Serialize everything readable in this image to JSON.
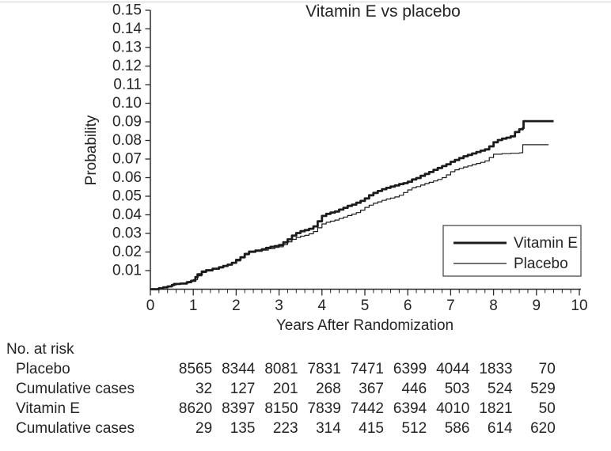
{
  "figure_colors": {
    "background": "#ffffff",
    "line_color": "#1b1b1b",
    "axis_color": "#2b2b2b",
    "text_color": "#262324",
    "top_rule_color": "#d2d2d2"
  },
  "chart": {
    "title": "Vitamin E vs placebo",
    "xlabel": "Years After Randomization",
    "ylabel": "Probability"
  },
  "legend": {
    "items": [
      {
        "label": "Vitamin E",
        "weight": "thick"
      },
      {
        "label": "Placebo",
        "weight": "thin"
      }
    ]
  },
  "chart_data": {
    "type": "line",
    "subtype": "kaplan-meier-step",
    "title": "Vitamin E vs placebo",
    "xlabel": "Years After Randomization",
    "ylabel": "Probability",
    "xlim": [
      0,
      10
    ],
    "ylim": [
      0,
      0.15
    ],
    "x_major_ticks": [
      "0",
      "1",
      "2",
      "3",
      "4",
      "5",
      "6",
      "7",
      "8",
      "9",
      "10"
    ],
    "x_minor_step": 0.2,
    "y_tick_labels": [
      "0.01",
      "0.02",
      "0.03",
      "0.04",
      "0.05",
      "0.06",
      "0.07",
      "0.08",
      "0.09",
      "0.10",
      "0.11",
      "0.12",
      "0.13",
      "0.14",
      "0.15"
    ],
    "grid": false,
    "legend_position": "lower right",
    "series": [
      {
        "name": "Vitamin E",
        "style": "thick",
        "points": [
          [
            0,
            0
          ],
          [
            0.2,
            0.0005
          ],
          [
            0.3,
            0.001
          ],
          [
            0.4,
            0.0015
          ],
          [
            0.5,
            0.0022
          ],
          [
            0.55,
            0.0028
          ],
          [
            0.7,
            0.003
          ],
          [
            0.85,
            0.0038
          ],
          [
            0.95,
            0.0045
          ],
          [
            1.05,
            0.0065
          ],
          [
            1.1,
            0.008
          ],
          [
            1.2,
            0.0095
          ],
          [
            1.3,
            0.0102
          ],
          [
            1.45,
            0.011
          ],
          [
            1.6,
            0.0118
          ],
          [
            1.7,
            0.0125
          ],
          [
            1.8,
            0.0132
          ],
          [
            1.9,
            0.0142
          ],
          [
            2.0,
            0.0158
          ],
          [
            2.1,
            0.0172
          ],
          [
            2.2,
            0.019
          ],
          [
            2.3,
            0.0202
          ],
          [
            2.45,
            0.0208
          ],
          [
            2.6,
            0.0215
          ],
          [
            2.7,
            0.0222
          ],
          [
            2.8,
            0.0228
          ],
          [
            2.9,
            0.0232
          ],
          [
            3.0,
            0.0238
          ],
          [
            3.1,
            0.0252
          ],
          [
            3.2,
            0.0268
          ],
          [
            3.3,
            0.0288
          ],
          [
            3.4,
            0.0302
          ],
          [
            3.5,
            0.0312
          ],
          [
            3.6,
            0.0318
          ],
          [
            3.7,
            0.0325
          ],
          [
            3.8,
            0.0338
          ],
          [
            3.9,
            0.0365
          ],
          [
            4.0,
            0.0394
          ],
          [
            4.1,
            0.0405
          ],
          [
            4.2,
            0.0412
          ],
          [
            4.3,
            0.0418
          ],
          [
            4.4,
            0.0428
          ],
          [
            4.5,
            0.0438
          ],
          [
            4.6,
            0.0448
          ],
          [
            4.7,
            0.0455
          ],
          [
            4.8,
            0.0465
          ],
          [
            4.9,
            0.0475
          ],
          [
            5.0,
            0.0488
          ],
          [
            5.1,
            0.0505
          ],
          [
            5.2,
            0.0518
          ],
          [
            5.3,
            0.0528
          ],
          [
            5.4,
            0.0538
          ],
          [
            5.5,
            0.0545
          ],
          [
            5.6,
            0.0552
          ],
          [
            5.7,
            0.0558
          ],
          [
            5.8,
            0.0565
          ],
          [
            5.9,
            0.057
          ],
          [
            6.0,
            0.0578
          ],
          [
            6.1,
            0.059
          ],
          [
            6.2,
            0.0598
          ],
          [
            6.3,
            0.061
          ],
          [
            6.4,
            0.062
          ],
          [
            6.5,
            0.063
          ],
          [
            6.6,
            0.0642
          ],
          [
            6.7,
            0.0652
          ],
          [
            6.8,
            0.0662
          ],
          [
            6.9,
            0.0672
          ],
          [
            7.0,
            0.0685
          ],
          [
            7.1,
            0.0695
          ],
          [
            7.2,
            0.0705
          ],
          [
            7.3,
            0.0715
          ],
          [
            7.4,
            0.0722
          ],
          [
            7.5,
            0.073
          ],
          [
            7.6,
            0.0738
          ],
          [
            7.7,
            0.0745
          ],
          [
            7.8,
            0.0752
          ],
          [
            7.9,
            0.0768
          ],
          [
            8.0,
            0.079
          ],
          [
            8.1,
            0.0802
          ],
          [
            8.2,
            0.081
          ],
          [
            8.3,
            0.0815
          ],
          [
            8.4,
            0.0822
          ],
          [
            8.5,
            0.0845
          ],
          [
            8.6,
            0.086
          ],
          [
            8.68,
            0.0866
          ],
          [
            8.7,
            0.0904
          ],
          [
            9.4,
            0.0904
          ]
        ]
      },
      {
        "name": "Placebo",
        "style": "thin",
        "points": [
          [
            0,
            0
          ],
          [
            0.2,
            0.0005
          ],
          [
            0.3,
            0.001
          ],
          [
            0.4,
            0.0015
          ],
          [
            0.5,
            0.0022
          ],
          [
            0.6,
            0.0028
          ],
          [
            0.75,
            0.0033
          ],
          [
            0.9,
            0.0042
          ],
          [
            1.0,
            0.0052
          ],
          [
            1.1,
            0.0072
          ],
          [
            1.2,
            0.009
          ],
          [
            1.3,
            0.0098
          ],
          [
            1.45,
            0.0108
          ],
          [
            1.6,
            0.0115
          ],
          [
            1.7,
            0.0122
          ],
          [
            1.8,
            0.013
          ],
          [
            1.9,
            0.014
          ],
          [
            2.0,
            0.0152
          ],
          [
            2.1,
            0.0168
          ],
          [
            2.2,
            0.0185
          ],
          [
            2.3,
            0.0198
          ],
          [
            2.45,
            0.0204
          ],
          [
            2.6,
            0.021
          ],
          [
            2.75,
            0.0218
          ],
          [
            2.9,
            0.0225
          ],
          [
            3.0,
            0.0228
          ],
          [
            3.1,
            0.024
          ],
          [
            3.2,
            0.0255
          ],
          [
            3.3,
            0.0268
          ],
          [
            3.4,
            0.0278
          ],
          [
            3.5,
            0.0285
          ],
          [
            3.6,
            0.029
          ],
          [
            3.7,
            0.0298
          ],
          [
            3.8,
            0.031
          ],
          [
            3.9,
            0.033
          ],
          [
            4.0,
            0.0351
          ],
          [
            4.1,
            0.036
          ],
          [
            4.2,
            0.0366
          ],
          [
            4.3,
            0.0372
          ],
          [
            4.4,
            0.038
          ],
          [
            4.5,
            0.0388
          ],
          [
            4.6,
            0.0396
          ],
          [
            4.7,
            0.0404
          ],
          [
            4.8,
            0.0412
          ],
          [
            4.9,
            0.0425
          ],
          [
            5.0,
            0.044
          ],
          [
            5.1,
            0.0452
          ],
          [
            5.2,
            0.0462
          ],
          [
            5.3,
            0.047
          ],
          [
            5.4,
            0.0478
          ],
          [
            5.5,
            0.0485
          ],
          [
            5.6,
            0.049
          ],
          [
            5.7,
            0.0496
          ],
          [
            5.8,
            0.0505
          ],
          [
            5.9,
            0.052
          ],
          [
            6.0,
            0.0534
          ],
          [
            6.1,
            0.0545
          ],
          [
            6.2,
            0.0552
          ],
          [
            6.3,
            0.056
          ],
          [
            6.4,
            0.0568
          ],
          [
            6.5,
            0.0575
          ],
          [
            6.6,
            0.0582
          ],
          [
            6.7,
            0.059
          ],
          [
            6.8,
            0.06
          ],
          [
            6.9,
            0.0615
          ],
          [
            7.0,
            0.0632
          ],
          [
            7.1,
            0.0642
          ],
          [
            7.2,
            0.065
          ],
          [
            7.3,
            0.0657
          ],
          [
            7.4,
            0.0663
          ],
          [
            7.5,
            0.067
          ],
          [
            7.6,
            0.0676
          ],
          [
            7.7,
            0.0682
          ],
          [
            7.8,
            0.069
          ],
          [
            7.9,
            0.0708
          ],
          [
            8.0,
            0.0726
          ],
          [
            8.2,
            0.0729
          ],
          [
            8.4,
            0.0731
          ],
          [
            8.6,
            0.0733
          ],
          [
            8.65,
            0.0734
          ],
          [
            8.68,
            0.0777
          ],
          [
            9.28,
            0.0777
          ]
        ]
      }
    ],
    "risk_table": {
      "heading": "No. at risk",
      "column_years": [
        1,
        2,
        3,
        4,
        5,
        6,
        7,
        8,
        9
      ],
      "rows": [
        {
          "label": "Placebo",
          "values": [
            "8565",
            "8344",
            "8081",
            "7831",
            "7471",
            "6399",
            "4044",
            "1833",
            "70"
          ]
        },
        {
          "label": "Cumulative cases",
          "values": [
            "32",
            "127",
            "201",
            "268",
            "367",
            "446",
            "503",
            "524",
            "529"
          ]
        },
        {
          "label": "Vitamin E",
          "values": [
            "8620",
            "8397",
            "8150",
            "7839",
            "7442",
            "6394",
            "4010",
            "1821",
            "50"
          ]
        },
        {
          "label": "Cumulative cases",
          "values": [
            "29",
            "135",
            "223",
            "314",
            "415",
            "512",
            "586",
            "614",
            "620"
          ]
        }
      ]
    }
  }
}
